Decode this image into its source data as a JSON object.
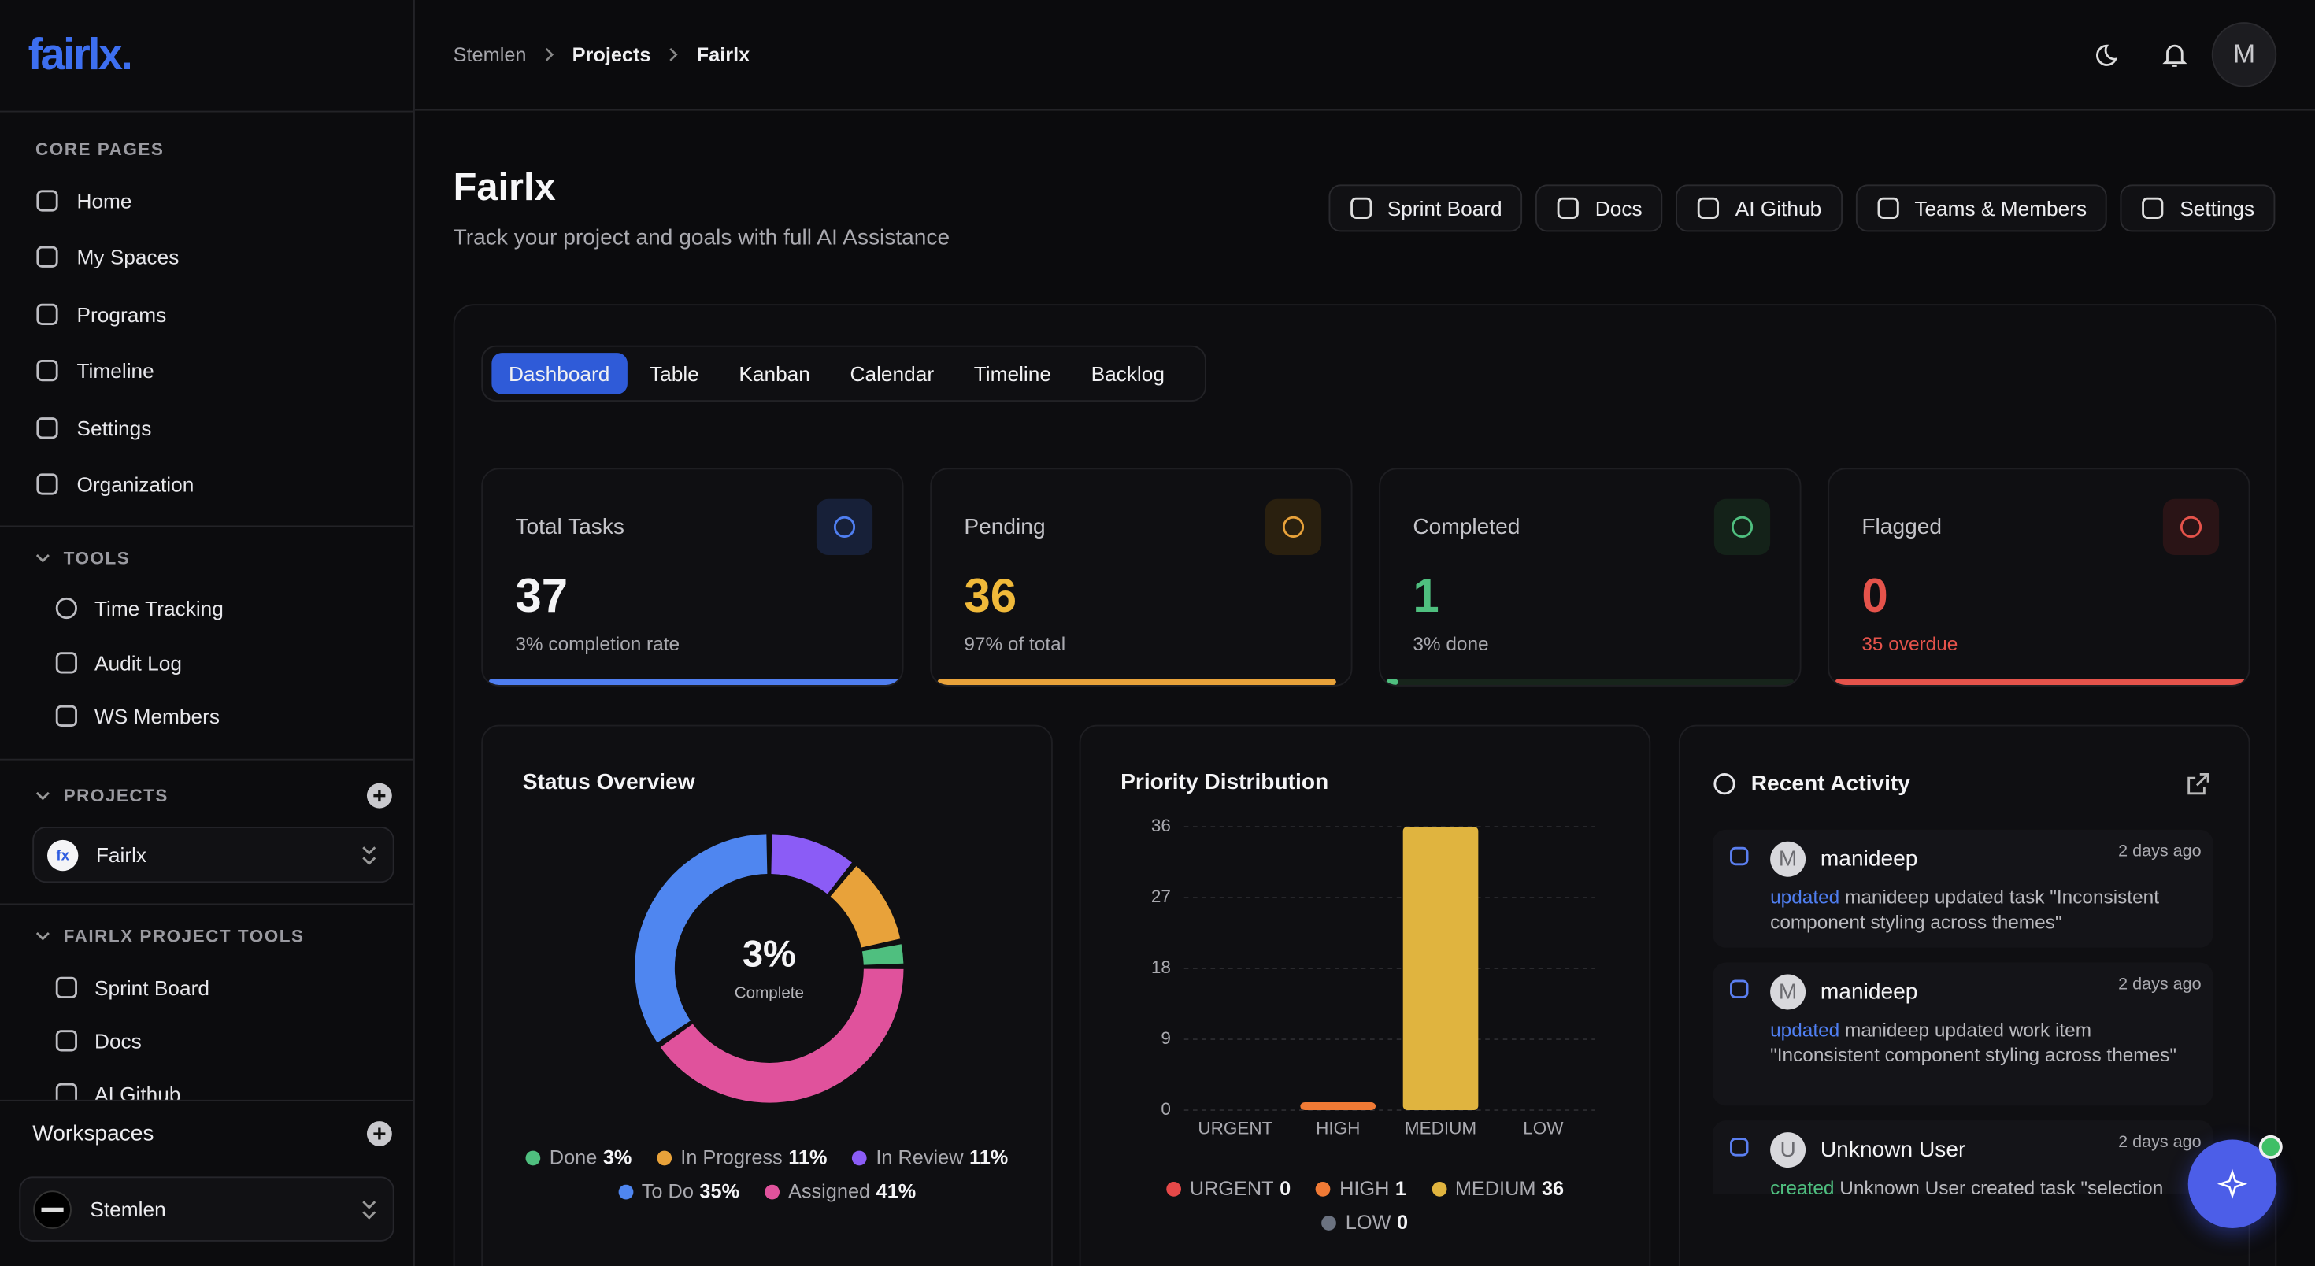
{
  "sidebar": {
    "logo": "fairlx.",
    "core_heading": "CORE PAGES",
    "core_items": [
      "Home",
      "My Spaces",
      "Programs",
      "Timeline",
      "Settings",
      "Organization"
    ],
    "tools_heading": "TOOLS",
    "tools_items": [
      "Time Tracking",
      "Audit Log",
      "WS Members"
    ],
    "projects_heading": "PROJECTS",
    "project": "Fairlx",
    "project_tools_heading": "FAIRLX PROJECT TOOLS",
    "project_tools_items": [
      "Sprint Board",
      "Docs",
      "AI Github"
    ],
    "workspaces_heading": "Workspaces",
    "workspace": "Stemlen"
  },
  "header": {
    "breadcrumb": [
      "Stemlen",
      "Projects",
      "Fairlx"
    ],
    "avatar": "M"
  },
  "page": {
    "title": "Fairlx",
    "subtitle": "Track your project and goals with full AI Assistance",
    "actions": [
      "Sprint Board",
      "Docs",
      "AI Github",
      "Teams & Members",
      "Settings"
    ],
    "tabs": [
      "Dashboard",
      "Table",
      "Kanban",
      "Calendar",
      "Timeline",
      "Backlog"
    ]
  },
  "stats": [
    {
      "label": "Total Tasks",
      "value": 37,
      "note": "3% completion rate"
    },
    {
      "label": "Pending",
      "value": 36,
      "note": "97% of total"
    },
    {
      "label": "Completed",
      "value": 1,
      "note": "3% done"
    },
    {
      "label": "Flagged",
      "value": 0,
      "note": "35 overdue"
    }
  ],
  "chart_data": [
    {
      "type": "donut",
      "title": "Status Overview",
      "center_label": "3%",
      "center_caption": "Complete",
      "categories": [
        "Done",
        "In Progress",
        "In Review",
        "To Do",
        "Assigned"
      ],
      "values": [
        3,
        11,
        11,
        35,
        41
      ],
      "value_labels": [
        "3%",
        "11%",
        "11%",
        "35%",
        "41%"
      ],
      "colors": [
        "#4fbf7f",
        "#e8a23a",
        "#8b5cf6",
        "#4f86f0",
        "#e0529c"
      ]
    },
    {
      "type": "bar",
      "title": "Priority Distribution",
      "categories": [
        "URGENT",
        "HIGH",
        "MEDIUM",
        "LOW"
      ],
      "values": [
        0,
        1,
        36,
        0
      ],
      "colors": [
        "#e54848",
        "#f07a35",
        "#e0b43f",
        "#6b7280"
      ],
      "ylim": [
        0,
        36
      ],
      "yticks": [
        0,
        9,
        18,
        27,
        36
      ],
      "grid": true
    }
  ],
  "activity": {
    "title": "Recent Activity",
    "items": [
      {
        "initial": "M",
        "user": "manideep",
        "time": "2 days ago",
        "action": "updated",
        "text": "manideep updated task \"Inconsistent component styling across themes\""
      },
      {
        "initial": "M",
        "user": "manideep",
        "time": "2 days ago",
        "action": "updated",
        "text": "manideep updated work item \"Inconsistent component styling across themes\""
      },
      {
        "initial": "U",
        "user": "Unknown User",
        "time": "2 days ago",
        "action": "created",
        "text": "Unknown User created task \"selection"
      }
    ]
  }
}
